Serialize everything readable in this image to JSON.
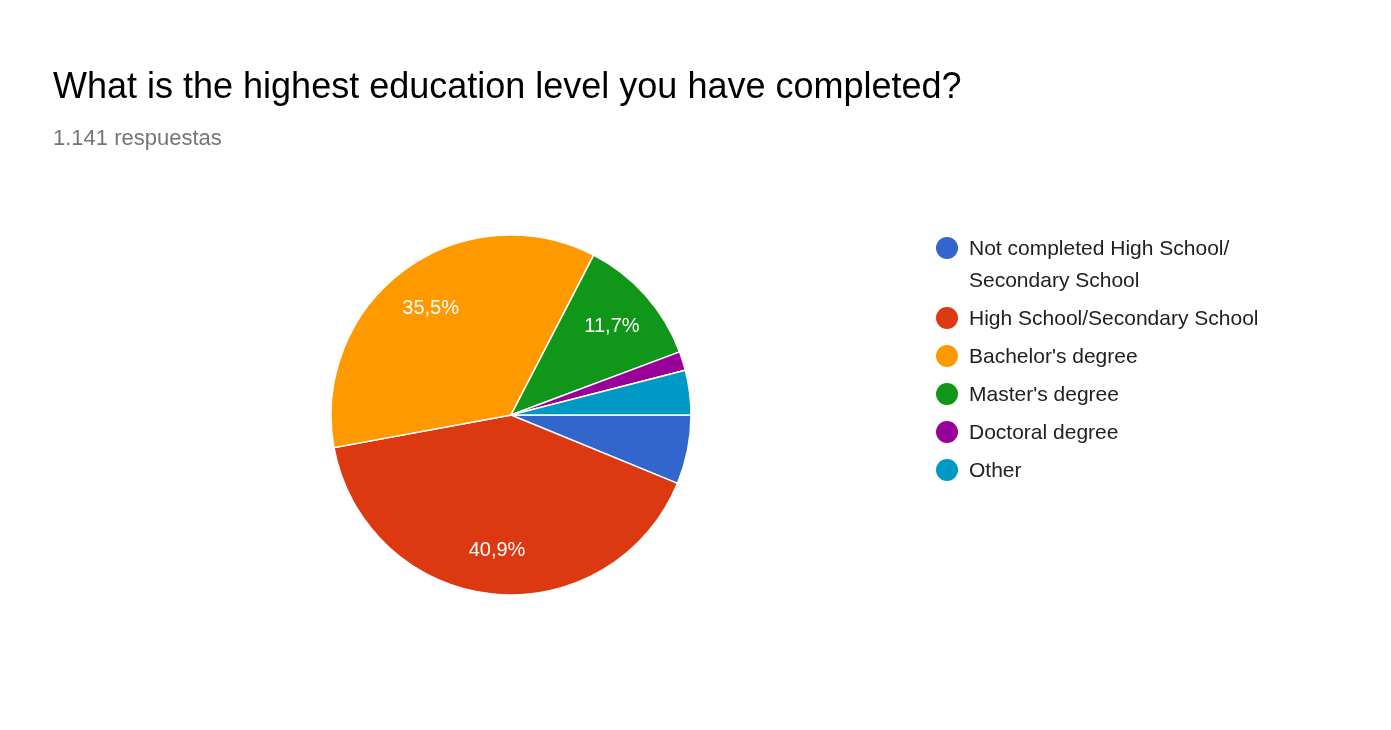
{
  "chart_data": {
    "type": "pie",
    "title": "What is the highest education level you have completed?",
    "subtitle": "1.141 respuestas",
    "categories": [
      "Not completed High School/ Secondary School",
      "High School/Secondary School",
      "Bachelor's degree",
      "Master's degree",
      "Doctoral degree",
      "Other"
    ],
    "values": [
      6.2,
      40.9,
      35.5,
      11.7,
      1.7,
      4.0
    ],
    "colors": [
      "#3366cc",
      "#dc3912",
      "#ff9900",
      "#109618",
      "#990099",
      "#0099c6"
    ],
    "value_labels": [
      null,
      "40,9%",
      "35,5%",
      "11,7%",
      null,
      null
    ],
    "legend": "right"
  }
}
